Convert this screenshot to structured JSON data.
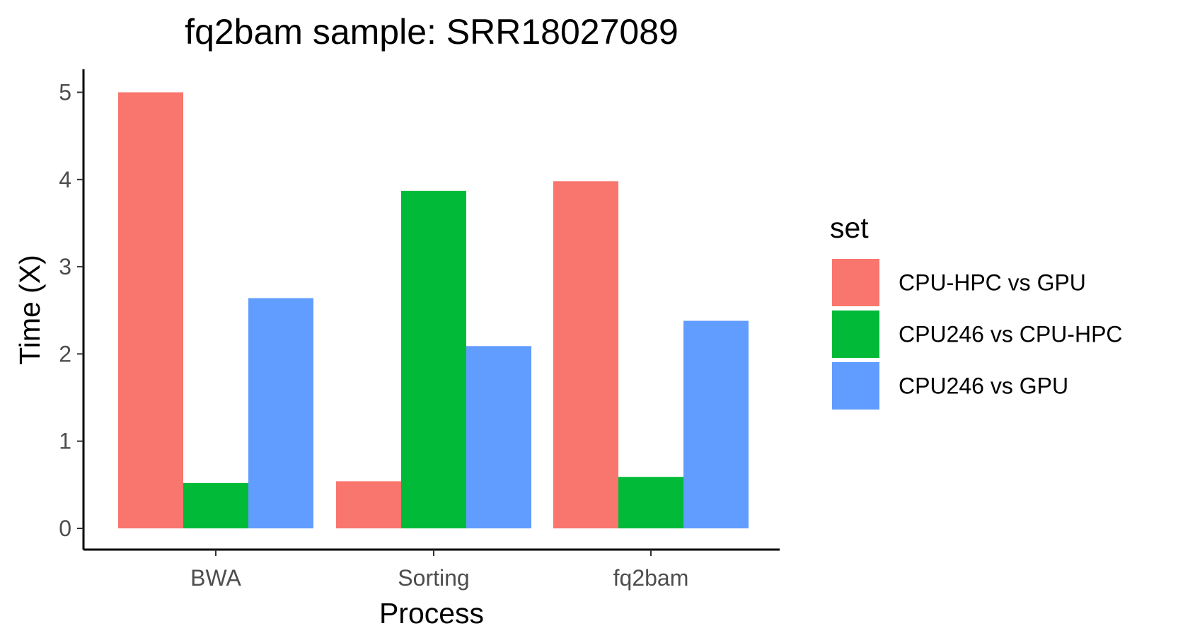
{
  "chart_data": {
    "type": "bar",
    "title": "fq2bam sample: SRR18027089",
    "xlabel": "Process",
    "ylabel": "Time (X)",
    "categories": [
      "BWA",
      "Sorting",
      "fq2bam"
    ],
    "ylim": [
      0,
      5.25
    ],
    "yticks": [
      0,
      1,
      2,
      3,
      4,
      5
    ],
    "grid": false,
    "legend": {
      "title": "set",
      "placement": "right"
    },
    "series": [
      {
        "name": "CPU-HPC vs GPU",
        "color": "#F8766D",
        "values": [
          5.0,
          0.54,
          3.98
        ]
      },
      {
        "name": "CPU246 vs CPU-HPC",
        "color": "#00BA38",
        "values": [
          0.52,
          3.87,
          0.59
        ]
      },
      {
        "name": "CPU246 vs GPU",
        "color": "#619CFF",
        "values": [
          2.64,
          2.09,
          2.38
        ]
      }
    ]
  }
}
